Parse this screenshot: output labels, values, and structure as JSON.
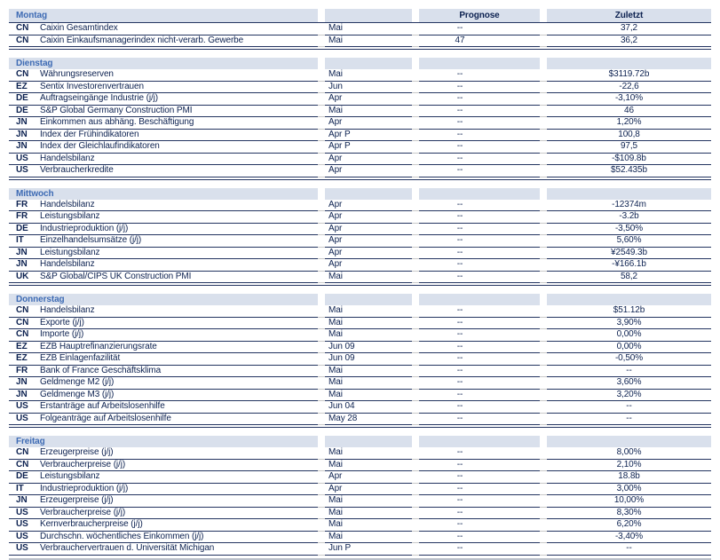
{
  "table": {
    "column_headers": {
      "prognose": "Prognose",
      "zuletzt": "Zuletzt"
    },
    "empty_value": "--",
    "sections": [
      {
        "day": "Montag",
        "show_column_headers": true,
        "rows": [
          {
            "code": "CN",
            "name": "Caixin Gesamtindex",
            "period": "Mai",
            "prognose": "--",
            "zuletzt": "37,2"
          },
          {
            "code": "CN",
            "name": "Caixin Einkaufsmanagerindex nicht-verarb. Gewerbe",
            "period": "Mai",
            "prognose": "47",
            "zuletzt": "36,2"
          }
        ]
      },
      {
        "day": "Dienstag",
        "show_column_headers": false,
        "rows": [
          {
            "code": "CN",
            "name": "Währungsreserven",
            "period": "Mai",
            "prognose": "--",
            "zuletzt": "$3119.72b"
          },
          {
            "code": "EZ",
            "name": "Sentix Investorenvertrauen",
            "period": "Jun",
            "prognose": "--",
            "zuletzt": "-22,6"
          },
          {
            "code": "DE",
            "name": "Auftragseingänge Industrie (j/j)",
            "period": "Apr",
            "prognose": "--",
            "zuletzt": "-3,10%"
          },
          {
            "code": "DE",
            "name": "S&P Global Germany Construction PMI",
            "period": "Mai",
            "prognose": "--",
            "zuletzt": "46"
          },
          {
            "code": "JN",
            "name": "Einkommen aus abhäng. Beschäftigung",
            "period": "Apr",
            "prognose": "--",
            "zuletzt": "1,20%"
          },
          {
            "code": "JN",
            "name": "Index der Frühindikatoren",
            "period": "Apr P",
            "prognose": "--",
            "zuletzt": "100,8"
          },
          {
            "code": "JN",
            "name": "Index der Gleichlaufindikatoren",
            "period": "Apr P",
            "prognose": "--",
            "zuletzt": "97,5"
          },
          {
            "code": "US",
            "name": "Handelsbilanz",
            "period": "Apr",
            "prognose": "--",
            "zuletzt": "-$109.8b"
          },
          {
            "code": "US",
            "name": "Verbraucherkredite",
            "period": "Apr",
            "prognose": "--",
            "zuletzt": "$52.435b"
          }
        ]
      },
      {
        "day": "Mittwoch",
        "show_column_headers": false,
        "rows": [
          {
            "code": "FR",
            "name": "Handelsbilanz",
            "period": "Apr",
            "prognose": "--",
            "zuletzt": "-12374m"
          },
          {
            "code": "FR",
            "name": "Leistungsbilanz",
            "period": "Apr",
            "prognose": "--",
            "zuletzt": "-3.2b"
          },
          {
            "code": "DE",
            "name": "Industrieproduktion (j/j)",
            "period": "Apr",
            "prognose": "--",
            "zuletzt": "-3,50%"
          },
          {
            "code": "IT",
            "name": "Einzelhandelsumsätze (j/j)",
            "period": "Apr",
            "prognose": "--",
            "zuletzt": "5,60%"
          },
          {
            "code": "JN",
            "name": "Leistungsbilanz",
            "period": "Apr",
            "prognose": "--",
            "zuletzt": "¥2549.3b"
          },
          {
            "code": "JN",
            "name": "Handelsbilanz",
            "period": "Apr",
            "prognose": "--",
            "zuletzt": "-¥166.1b"
          },
          {
            "code": "UK",
            "name": "S&P Global/CIPS UK Construction PMI",
            "period": "Mai",
            "prognose": "--",
            "zuletzt": "58,2"
          }
        ]
      },
      {
        "day": "Donnerstag",
        "show_column_headers": false,
        "rows": [
          {
            "code": "CN",
            "name": "Handelsbilanz",
            "period": "Mai",
            "prognose": "--",
            "zuletzt": "$51.12b"
          },
          {
            "code": "CN",
            "name": "Exporte (j/j)",
            "period": "Mai",
            "prognose": "--",
            "zuletzt": "3,90%"
          },
          {
            "code": "CN",
            "name": "Importe (j/j)",
            "period": "Mai",
            "prognose": "--",
            "zuletzt": "0,00%"
          },
          {
            "code": "EZ",
            "name": "EZB Hauptrefinanzierungsrate",
            "period": "Jun 09",
            "prognose": "--",
            "zuletzt": "0,00%"
          },
          {
            "code": "EZ",
            "name": "EZB Einlagenfazilität",
            "period": "Jun 09",
            "prognose": "--",
            "zuletzt": "-0,50%"
          },
          {
            "code": "FR",
            "name": "Bank of France Geschäftsklima",
            "period": "Mai",
            "prognose": "--",
            "zuletzt": "--"
          },
          {
            "code": "JN",
            "name": "Geldmenge M2 (j/j)",
            "period": "Mai",
            "prognose": "--",
            "zuletzt": "3,60%"
          },
          {
            "code": "JN",
            "name": "Geldmenge M3 (j/j)",
            "period": "Mai",
            "prognose": "--",
            "zuletzt": "3,20%"
          },
          {
            "code": "US",
            "name": "Erstanträge auf Arbeitslosenhilfe",
            "period": "Jun 04",
            "prognose": "--",
            "zuletzt": "--"
          },
          {
            "code": "US",
            "name": "Folgeanträge auf Arbeitslosenhilfe",
            "period": "May 28",
            "prognose": "--",
            "zuletzt": "--"
          }
        ]
      },
      {
        "day": "Freitag",
        "show_column_headers": false,
        "rows": [
          {
            "code": "CN",
            "name": "Erzeugerpreise (j/j)",
            "period": "Mai",
            "prognose": "--",
            "zuletzt": "8,00%"
          },
          {
            "code": "CN",
            "name": "Verbraucherpreise (j/j)",
            "period": "Mai",
            "prognose": "--",
            "zuletzt": "2,10%"
          },
          {
            "code": "DE",
            "name": "Leistungsbilanz",
            "period": "Apr",
            "prognose": "--",
            "zuletzt": "18.8b"
          },
          {
            "code": "IT",
            "name": "Industrieproduktion (j/j)",
            "period": "Apr",
            "prognose": "--",
            "zuletzt": "3,00%"
          },
          {
            "code": "JN",
            "name": "Erzeugerpreise (j/j)",
            "period": "Mai",
            "prognose": "--",
            "zuletzt": "10,00%"
          },
          {
            "code": "US",
            "name": "Verbraucherpreise (j/j)",
            "period": "Mai",
            "prognose": "--",
            "zuletzt": "8,30%"
          },
          {
            "code": "US",
            "name": "Kernverbraucherpreise (j/j)",
            "period": "Mai",
            "prognose": "--",
            "zuletzt": "6,20%"
          },
          {
            "code": "US",
            "name": "Durchschn. wöchentliches Einkommen (j/j)",
            "period": "Mai",
            "prognose": "--",
            "zuletzt": "-3,40%"
          },
          {
            "code": "US",
            "name": "Verbrauchervertrauen d. Universität Michigan",
            "period": "Jun P",
            "prognose": "--",
            "zuletzt": "--"
          }
        ]
      }
    ]
  },
  "colors": {
    "band_bg": "#d9e0ec",
    "day_label": "#3e6bb4",
    "text": "#0c2150",
    "line": "#233460",
    "spacer_line": "#c9c9c9",
    "bottom_bar": "#b9bfc9"
  }
}
